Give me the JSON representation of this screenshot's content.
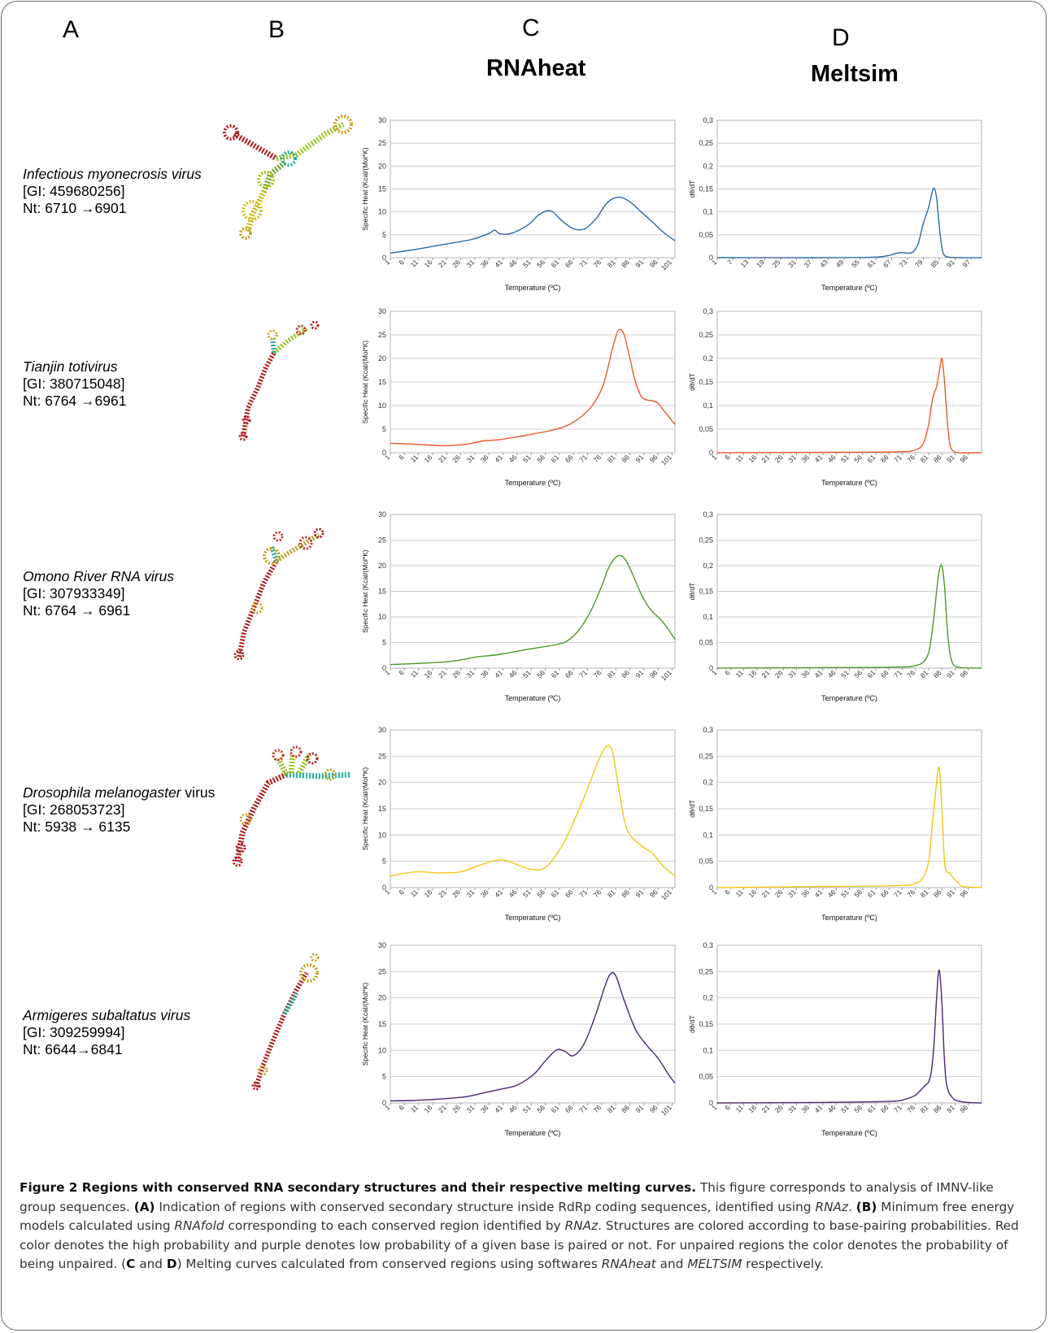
{
  "columns": {
    "A": "A",
    "B": "B",
    "C": "C",
    "D": "D"
  },
  "tools": {
    "rnaheat": "RNAheat",
    "meltsim": "Meltsim"
  },
  "rows": [
    {
      "name": "Infectious myonecrosis virus",
      "name_rest": "",
      "gi": "[GI: 459680256]",
      "nt": "Nt: 6710 →6901"
    },
    {
      "name": "Tianjin totivirus",
      "name_rest": "",
      "gi": "[GI: 380715048]",
      "nt": "Nt: 6764 →6961"
    },
    {
      "name": "Omono River RNA virus",
      "name_rest": "",
      "gi": "[GI: 307933349]",
      "nt": "Nt: 6764 → 6961"
    },
    {
      "name": "Drosophila melanogaster",
      "name_rest": " virus",
      "gi": "[GI: 268053723]",
      "nt": "Nt: 5938 → 6135"
    },
    {
      "name": "Armigeres subaltatus virus",
      "name_rest": "",
      "gi": "[GI: 309259994]",
      "nt": "Nt: 6644→6841"
    }
  ],
  "axis_text": {
    "c_ylabel": "Specific Heat (Kcal/(Mol*K)",
    "d_ylabel": "dθ/dT",
    "xlabel": "Temperature (ºC)"
  },
  "chart_data": [
    {
      "id": "c1",
      "type": "line",
      "ylabel": "Specific Heat (Kcal/(Mol*K)",
      "xlabel": "Temperature (ºC)",
      "ylim": [
        0,
        30
      ],
      "yticks": [
        "0",
        "5",
        "10",
        "15",
        "20",
        "25",
        "30"
      ],
      "xticks": [
        "1",
        "6",
        "11",
        "16",
        "21",
        "26",
        "31",
        "36",
        "41",
        "46",
        "51",
        "56",
        "61",
        "66",
        "71",
        "76",
        "81",
        "86",
        "91",
        "96",
        "101"
      ],
      "xrange": [
        1,
        102
      ],
      "color": "#2a6aa7",
      "x": [
        1,
        10,
        20,
        30,
        36,
        38,
        40,
        44,
        50,
        54,
        58,
        62,
        66,
        70,
        74,
        78,
        82,
        86,
        90,
        94,
        98,
        102
      ],
      "y": [
        1,
        1.8,
        2.9,
        4,
        5.3,
        6,
        5.2,
        5.3,
        7.2,
        9.5,
        10.2,
        8,
        6.3,
        6.3,
        8.5,
        12,
        13.2,
        12.2,
        10,
        7.8,
        5.5,
        3.7
      ]
    },
    {
      "id": "d1",
      "type": "line",
      "ylabel": "dθ/dT",
      "xlabel": "Temperature (ºC)",
      "ylim": [
        0,
        0.3
      ],
      "yticks": [
        "0",
        "0,05",
        "0,1",
        "0,15",
        "0,2",
        "0,25",
        "0,3"
      ],
      "xticks": [
        "1",
        "7",
        "13",
        "19",
        "25",
        "31",
        "37",
        "43",
        "49",
        "55",
        "61",
        "67",
        "73",
        "79",
        "85",
        "91",
        "97"
      ],
      "xrange": [
        1,
        101
      ],
      "color": "#2a6aa7",
      "x": [
        1,
        40,
        60,
        66,
        69,
        71,
        73,
        75,
        77,
        79,
        81,
        82,
        83,
        84,
        85,
        86,
        87,
        89,
        93,
        101
      ],
      "y": [
        0,
        0,
        0.001,
        0.005,
        0.01,
        0.011,
        0.01,
        0.012,
        0.03,
        0.075,
        0.11,
        0.135,
        0.152,
        0.13,
        0.07,
        0.022,
        0.005,
        0.001,
        0,
        0
      ]
    },
    {
      "id": "c2",
      "type": "line",
      "ylabel": "Specific Heat (Kcal/(Mol*K)",
      "xlabel": "Temperature (ºC)",
      "ylim": [
        0,
        30
      ],
      "yticks": [
        "0",
        "5",
        "10",
        "15",
        "20",
        "25",
        "30"
      ],
      "xticks": [
        "1",
        "6",
        "11",
        "16",
        "21",
        "26",
        "31",
        "36",
        "41",
        "46",
        "51",
        "56",
        "61",
        "66",
        "71",
        "76",
        "81",
        "86",
        "91",
        "96",
        "101"
      ],
      "xrange": [
        1,
        102
      ],
      "color": "#ea5a2a",
      "x": [
        1,
        10,
        20,
        28,
        34,
        40,
        50,
        60,
        66,
        72,
        76,
        78,
        80,
        82,
        84,
        86,
        88,
        90,
        92,
        94,
        96,
        98,
        100,
        102
      ],
      "y": [
        2,
        1.8,
        1.5,
        1.8,
        2.5,
        2.8,
        3.8,
        5,
        6.5,
        9.5,
        13.5,
        17.5,
        22.5,
        26,
        25,
        20,
        15,
        12,
        11.2,
        11,
        10.5,
        9,
        7.5,
        6
      ]
    },
    {
      "id": "d2",
      "type": "line",
      "ylabel": "dθ/dT",
      "xlabel": "Temperature (ºC)",
      "ylim": [
        0,
        0.3
      ],
      "yticks": [
        "0",
        "0,05",
        "0,1",
        "0,15",
        "0,2",
        "0,25",
        "0,3"
      ],
      "xticks": [
        "1",
        "6",
        "11",
        "16",
        "21",
        "26",
        "31",
        "36",
        "41",
        "46",
        "51",
        "56",
        "61",
        "66",
        "71",
        "76",
        "81",
        "86",
        "91",
        "96"
      ],
      "xrange": [
        1,
        101
      ],
      "color": "#ea5a2a",
      "x": [
        1,
        50,
        70,
        76,
        79,
        81,
        82,
        83,
        84,
        85,
        86,
        87,
        88,
        89,
        90,
        92,
        95,
        101
      ],
      "y": [
        0,
        0.001,
        0.002,
        0.006,
        0.02,
        0.06,
        0.1,
        0.125,
        0.14,
        0.17,
        0.2,
        0.15,
        0.07,
        0.02,
        0.005,
        0,
        0,
        0
      ]
    },
    {
      "id": "c3",
      "type": "line",
      "ylabel": "Specific Heat (Kcal/(Mol*K)",
      "xlabel": "Temperature (ºC)",
      "ylim": [
        0,
        30
      ],
      "yticks": [
        "0",
        "5",
        "10",
        "15",
        "20",
        "25",
        "30"
      ],
      "xticks": [
        "1",
        "6",
        "11",
        "16",
        "21",
        "26",
        "31",
        "36",
        "41",
        "46",
        "51",
        "56",
        "61",
        "66",
        "71",
        "76",
        "81",
        "86",
        "91",
        "96",
        "101"
      ],
      "xrange": [
        1,
        102
      ],
      "color": "#4a9a2a",
      "x": [
        1,
        10,
        20,
        26,
        32,
        40,
        50,
        60,
        64,
        68,
        72,
        76,
        78,
        80,
        82,
        84,
        86,
        88,
        90,
        92,
        94,
        96,
        98,
        100,
        102
      ],
      "y": [
        0.7,
        0.9,
        1.2,
        1.6,
        2.2,
        2.7,
        3.7,
        4.6,
        5.4,
        7.5,
        11,
        16,
        19,
        21,
        22,
        21.5,
        19.5,
        17,
        14.5,
        12.5,
        11,
        10,
        8.8,
        7.3,
        5.6
      ]
    },
    {
      "id": "d3",
      "type": "line",
      "ylabel": "dθ/dT",
      "xlabel": "Temperature (ºC)",
      "ylim": [
        0,
        0.3
      ],
      "yticks": [
        "0",
        "0,05",
        "0,1",
        "0,15",
        "0,2",
        "0,25",
        "0,3"
      ],
      "xticks": [
        "1",
        "6",
        "11",
        "16",
        "21",
        "26",
        "31",
        "36",
        "41",
        "46",
        "51",
        "56",
        "61",
        "66",
        "71",
        "76",
        "81",
        "86",
        "91",
        "96"
      ],
      "xrange": [
        1,
        101
      ],
      "color": "#4a9a2a",
      "x": [
        1,
        40,
        70,
        76,
        79,
        81,
        82,
        83,
        84,
        85,
        86,
        87,
        88,
        89,
        90,
        91,
        93,
        101
      ],
      "y": [
        0,
        0.001,
        0.002,
        0.005,
        0.012,
        0.03,
        0.06,
        0.1,
        0.15,
        0.19,
        0.2,
        0.16,
        0.08,
        0.03,
        0.01,
        0.004,
        0.001,
        0
      ]
    },
    {
      "id": "c4",
      "type": "line",
      "ylabel": "Specific Heat (Kcal/(Mol*K)",
      "xlabel": "Temperature (ºC)",
      "ylim": [
        0,
        30
      ],
      "yticks": [
        "0",
        "5",
        "10",
        "15",
        "20",
        "25",
        "30"
      ],
      "xticks": [
        "1",
        "6",
        "11",
        "16",
        "21",
        "26",
        "31",
        "36",
        "41",
        "46",
        "51",
        "56",
        "61",
        "66",
        "71",
        "76",
        "81",
        "86",
        "91",
        "96",
        "101"
      ],
      "xrange": [
        1,
        102
      ],
      "color": "#f5c518",
      "x": [
        1,
        10,
        18,
        26,
        34,
        40,
        44,
        50,
        56,
        62,
        66,
        70,
        74,
        76,
        78,
        79,
        80,
        82,
        84,
        86,
        90,
        94,
        98,
        102
      ],
      "y": [
        2.2,
        3,
        2.8,
        3,
        4.5,
        5.3,
        4.8,
        3.6,
        3.8,
        8,
        12.5,
        17.5,
        23,
        25.5,
        27,
        26.8,
        25.5,
        19,
        13,
        10,
        8,
        6.5,
        4,
        2.2
      ]
    },
    {
      "id": "d4",
      "type": "line",
      "ylabel": "dθ/dT",
      "xlabel": "Temperature (ºC)",
      "ylim": [
        0,
        0.3
      ],
      "yticks": [
        "0",
        "0,05",
        "0,1",
        "0,15",
        "0,2",
        "0,25",
        "0,3"
      ],
      "xticks": [
        "1",
        "6",
        "11",
        "16",
        "21",
        "26",
        "31",
        "36",
        "41",
        "46",
        "51",
        "56",
        "61",
        "66",
        "71",
        "76",
        "81",
        "86",
        "91",
        "96"
      ],
      "xrange": [
        1,
        101
      ],
      "color": "#f5c518",
      "x": [
        1,
        40,
        70,
        76,
        79,
        81,
        82,
        83,
        84,
        85,
        86,
        87,
        88,
        89,
        90,
        92,
        94,
        101
      ],
      "y": [
        0,
        0.002,
        0.004,
        0.008,
        0.02,
        0.05,
        0.1,
        0.15,
        0.2,
        0.228,
        0.15,
        0.05,
        0.03,
        0.028,
        0.02,
        0.01,
        0.002,
        0
      ]
    },
    {
      "id": "c5",
      "type": "line",
      "ylabel": "Specific Heat (Kcal/(Mol*K)",
      "xlabel": "Temperature (ºC)",
      "ylim": [
        0,
        30
      ],
      "yticks": [
        "0",
        "5",
        "10",
        "15",
        "20",
        "25",
        "30"
      ],
      "xticks": [
        "1",
        "6",
        "11",
        "16",
        "21",
        "26",
        "31",
        "36",
        "41",
        "46",
        "51",
        "56",
        "61",
        "66",
        "71",
        "76",
        "81",
        "86",
        "91",
        "96",
        "101"
      ],
      "xrange": [
        1,
        102
      ],
      "color": "#4a2670",
      "x": [
        1,
        10,
        20,
        28,
        34,
        40,
        46,
        52,
        56,
        60,
        63,
        66,
        70,
        74,
        77,
        79,
        81,
        84,
        88,
        92,
        96,
        100,
        102
      ],
      "y": [
        0.4,
        0.5,
        0.8,
        1.2,
        1.9,
        2.6,
        3.4,
        5.5,
        8,
        10.1,
        9.8,
        9,
        11.5,
        17,
        22,
        24.5,
        24.2,
        19.5,
        14,
        11,
        8.5,
        5.2,
        3.8
      ]
    },
    {
      "id": "d5",
      "type": "line",
      "ylabel": "dθ/dT",
      "xlabel": "Temperature (ºC)",
      "ylim": [
        0,
        0.3
      ],
      "yticks": [
        "0",
        "0,05",
        "0,1",
        "0,15",
        "0,2",
        "0,25",
        "0,3"
      ],
      "xticks": [
        "1",
        "6",
        "11",
        "16",
        "21",
        "26",
        "31",
        "36",
        "41",
        "46",
        "51",
        "56",
        "61",
        "66",
        "71",
        "76",
        "81",
        "86",
        "91",
        "96"
      ],
      "xrange": [
        1,
        101
      ],
      "color": "#4a2670",
      "x": [
        1,
        40,
        66,
        72,
        76,
        79,
        80,
        81,
        82,
        83,
        84,
        85,
        86,
        87,
        88,
        90,
        92,
        96,
        101
      ],
      "y": [
        0,
        0.001,
        0.003,
        0.007,
        0.015,
        0.03,
        0.035,
        0.04,
        0.06,
        0.11,
        0.2,
        0.253,
        0.19,
        0.08,
        0.03,
        0.01,
        0.004,
        0.001,
        0
      ]
    }
  ],
  "caption": {
    "title": "Figure 2 Regions with conserved RNA secondary structures and their respective melting curves.",
    "t1": " This figure corresponds to analysis of IMNV-like group sequences. ",
    "a_tag": "(A)",
    "t2": " Indication of regions with conserved secondary structure inside RdRp coding sequences, identified using ",
    "i_rnaz1": "RNAz",
    "t3": ". ",
    "b_tag": "(B)",
    "t4": " Minimum free energy models calculated using ",
    "i_rnafold": "RNAfold",
    "t5": " corresponding to each conserved region identified by ",
    "i_rnaz2": "RNAz",
    "t6": ". Structures are colored according to base-pairing probabilities. Red color denotes the high probability and purple denotes low probability of a given base is paired or not. For unpaired regions the color denotes the probability of being unpaired. (",
    "c_tag": "C",
    "t7": " and ",
    "d_tag": "D",
    "t8": ") Melting curves calculated from conserved regions using softwares ",
    "i_rnaheat": "RNAheat",
    "t9": " and ",
    "i_meltsim": "MELTSIM",
    "t10": " respectively."
  }
}
